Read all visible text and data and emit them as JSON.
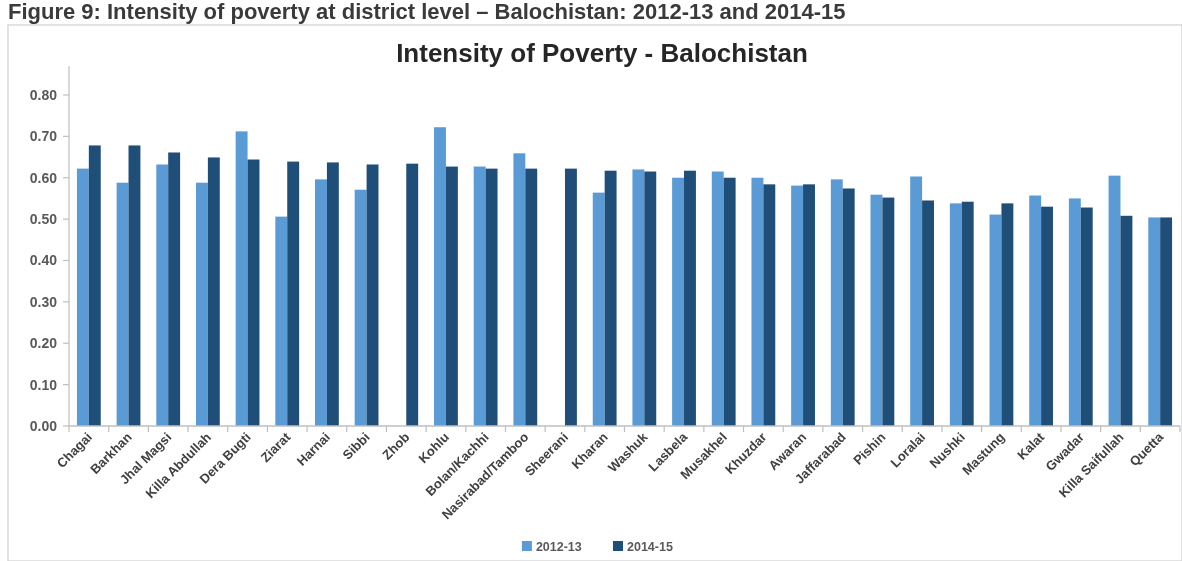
{
  "chart_data": {
    "type": "bar",
    "title": "Intensity of Poverty - Balochistan",
    "annotations": [
      "Figure 9: Intensity of poverty at district level – Balochistan: 2012-13 and 2014-15"
    ],
    "categories": [
      "Chagai",
      "Barkhan",
      "Jhal Magsi",
      "Killa Abdullah",
      "Dera Bugti",
      "Ziarat",
      "Harnai",
      "Sibbi",
      "Zhob",
      "Kohlu",
      "Bolan/Kachhi",
      "Nasirabad/Tamboo",
      "Sheerani",
      "Kharan",
      "Washuk",
      "Lasbela",
      "Musakhel",
      "Khuzdar",
      "Awaran",
      "Jaffarabad",
      "Pishin",
      "Loralai",
      "Nushki",
      "Mastung",
      "Kalat",
      "Gwadar",
      "Killa Saifullah",
      "Quetta"
    ],
    "series": [
      {
        "name": "2012-13",
        "color": "#5b9bd5",
        "values": [
          0.622,
          0.588,
          0.632,
          0.588,
          0.712,
          0.506,
          0.596,
          0.571,
          null,
          0.722,
          0.627,
          0.659,
          null,
          0.564,
          0.62,
          0.6,
          0.615,
          0.6,
          0.581,
          0.596,
          0.559,
          0.603,
          0.538,
          0.511,
          0.557,
          0.55,
          0.605,
          0.504
        ]
      },
      {
        "name": "2014-15",
        "color": "#1f4e79",
        "values": [
          0.678,
          0.678,
          0.661,
          0.649,
          0.644,
          0.639,
          0.637,
          0.632,
          0.634,
          0.627,
          0.622,
          0.622,
          0.622,
          0.617,
          0.615,
          0.617,
          0.6,
          0.584,
          0.584,
          0.574,
          0.552,
          0.545,
          0.542,
          0.538,
          0.53,
          0.528,
          0.508,
          0.504
        ]
      }
    ],
    "ylim": [
      0,
      0.87
    ],
    "yticks": [
      {
        "value": 0,
        "label": "0.00"
      },
      {
        "value": 0.1,
        "label": "0.10"
      },
      {
        "value": 0.2,
        "label": "0.20"
      },
      {
        "value": 0.3,
        "label": "0.30"
      },
      {
        "value": 0.4,
        "label": "0.40"
      },
      {
        "value": 0.5,
        "label": "0.50"
      },
      {
        "value": 0.6,
        "label": "0.60"
      },
      {
        "value": 0.7,
        "label": "0.70"
      },
      {
        "value": 0.8,
        "label": "0.80"
      }
    ],
    "grid": false,
    "legend": "bottom"
  }
}
